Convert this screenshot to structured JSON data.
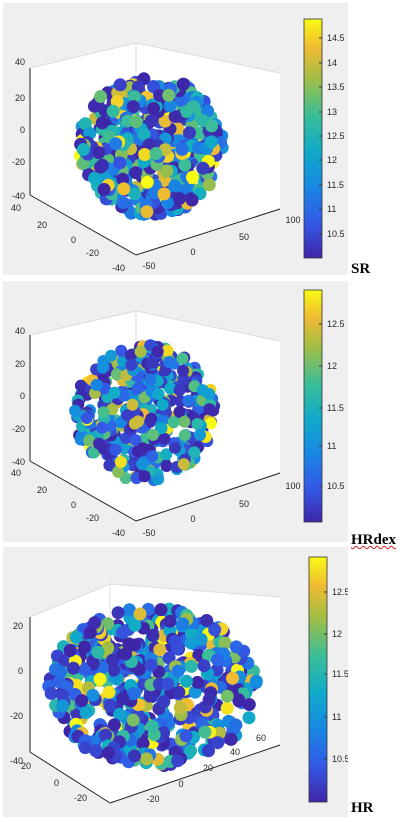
{
  "chart_data": [
    {
      "type": "scatter",
      "label": "SR",
      "z_ticks": [
        "40",
        "20",
        "0",
        "-20",
        "-40"
      ],
      "y_ticks": [
        "40",
        "20",
        "0",
        "-20",
        "-40"
      ],
      "x_ticks": [
        "-50",
        "0",
        "50",
        "100"
      ],
      "colorbar_ticks": [
        "14.5",
        "14",
        "13.5",
        "13",
        "12.5",
        "12",
        "11.5",
        "11",
        "10.5"
      ],
      "clim": [
        10.1,
        14.8
      ],
      "colormap": "parula"
    },
    {
      "type": "scatter",
      "label": "HRdex",
      "z_ticks": [
        "40",
        "20",
        "0",
        "-20",
        "-40"
      ],
      "y_ticks": [
        "40",
        "20",
        "0",
        "-20",
        "-40"
      ],
      "x_ticks": [
        "-50",
        "0",
        "50",
        "100"
      ],
      "colorbar_ticks": [
        "12.5",
        "12",
        "11.5",
        "11",
        "10.5"
      ],
      "clim": [
        10.1,
        12.9
      ],
      "colormap": "parula"
    },
    {
      "type": "scatter",
      "label": "HR",
      "z_ticks": [
        "20",
        "0",
        "-20",
        "-40"
      ],
      "y_ticks": [
        "20",
        "0",
        "-20"
      ],
      "x_ticks": [
        "-20",
        "0",
        "20",
        "40",
        "60"
      ],
      "colorbar_ticks": [
        "12.5",
        "12",
        "11.5",
        "11",
        "10.5"
      ],
      "clim": [
        10.1,
        12.9
      ],
      "colormap": "parula"
    }
  ]
}
